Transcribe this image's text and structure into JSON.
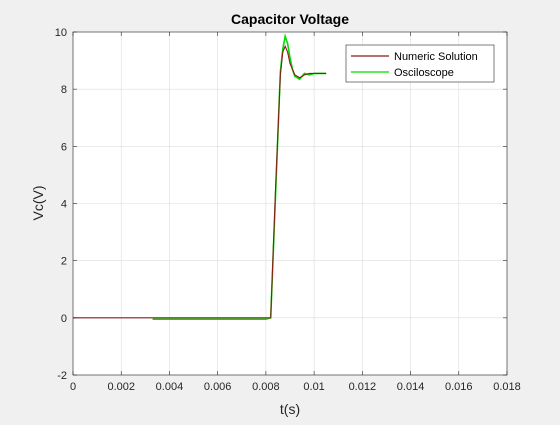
{
  "chart_data": {
    "type": "line",
    "title": "Capacitor Voltage",
    "xlabel": "t(s)",
    "ylabel": "Vc(V)",
    "xlim": [
      0,
      0.018
    ],
    "ylim": [
      -2,
      10
    ],
    "xticks": [
      0,
      0.002,
      0.004,
      0.006,
      0.008,
      0.01,
      0.012,
      0.014,
      0.016,
      0.018
    ],
    "xtick_labels": [
      "0",
      "0.002",
      "0.004",
      "0.006",
      "0.008",
      "0.01",
      "0.012",
      "0.014",
      "0.016",
      "0.018"
    ],
    "yticks": [
      -2,
      0,
      2,
      4,
      6,
      8,
      10
    ],
    "ytick_labels": [
      "-2",
      "0",
      "2",
      "4",
      "6",
      "8",
      "10"
    ],
    "grid": true,
    "legend_position": "top-right",
    "series": [
      {
        "name": "Numeric Solution",
        "color": "#8b1a1a",
        "style": "solid",
        "x": [
          0,
          0.0082,
          0.0084,
          0.0086,
          0.0087,
          0.0088,
          0.0089,
          0.009,
          0.0092,
          0.0094,
          0.0096,
          0.0098,
          0.01,
          0.0105
        ],
        "y": [
          0,
          0,
          4.5,
          8.5,
          9.3,
          9.5,
          9.3,
          8.9,
          8.5,
          8.4,
          8.5,
          8.55,
          8.55,
          8.55
        ]
      },
      {
        "name": "Osciloscope",
        "color": "#00dd00",
        "style": "solid",
        "x": [
          0.0033,
          0.004,
          0.005,
          0.006,
          0.007,
          0.008,
          0.0082,
          0.0084,
          0.0086,
          0.0087,
          0.0088,
          0.0089,
          0.009,
          0.0091,
          0.0092,
          0.0094,
          0.0096,
          0.0098,
          0.01,
          0.0105
        ],
        "y": [
          -0.05,
          -0.05,
          -0.05,
          -0.05,
          -0.05,
          -0.05,
          0,
          4.3,
          8.6,
          9.4,
          9.85,
          9.6,
          9.1,
          8.7,
          8.45,
          8.35,
          8.55,
          8.5,
          8.55,
          8.55
        ]
      }
    ]
  }
}
